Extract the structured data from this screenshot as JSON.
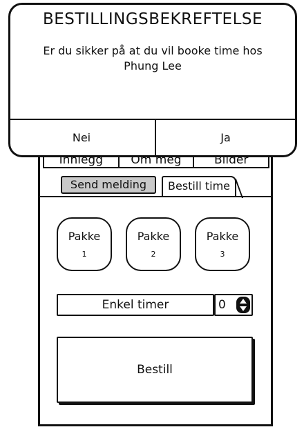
{
  "dialog": {
    "title": "BESTILLINGSBEKREFTELSE",
    "message": "Er du sikker på at du vil booke time hos Phung Lee",
    "no_label": "Nei",
    "yes_label": "Ja"
  },
  "profile_tabs": [
    {
      "label": "Innlegg"
    },
    {
      "label": "Om meg"
    },
    {
      "label": "Bilder"
    }
  ],
  "sub_tabs": {
    "send_message": "Send melding",
    "book": "Bestill time",
    "active": "Bestill time"
  },
  "packages": [
    {
      "name": "Pakke",
      "number": "1"
    },
    {
      "name": "Pakke",
      "number": "2"
    },
    {
      "name": "Pakke",
      "number": "3"
    }
  ],
  "timer": {
    "label": "Enkel timer",
    "value": "0"
  },
  "order_button": {
    "label": "Bestill"
  },
  "colors": {
    "ink": "#111111",
    "inactive_tab": "#c9c9c9",
    "background": "#ffffff"
  }
}
